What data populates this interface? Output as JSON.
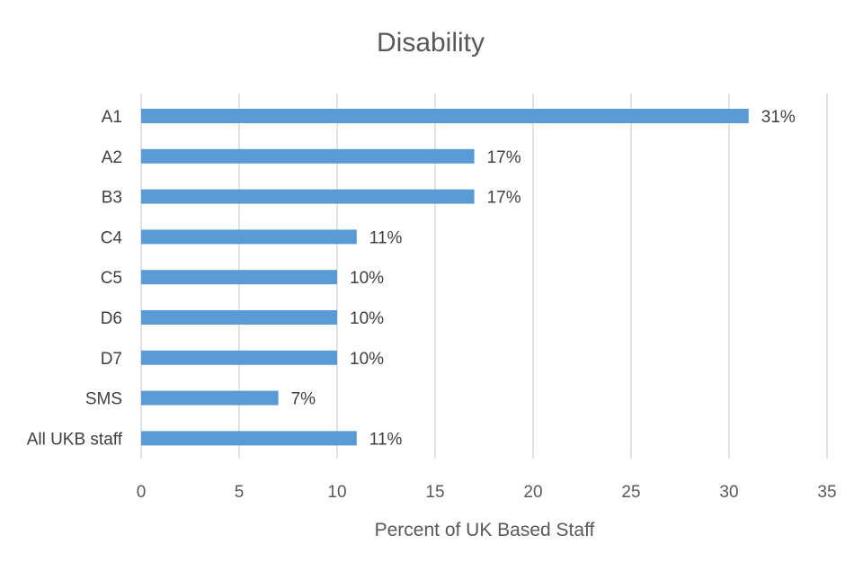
{
  "chart_data": {
    "type": "bar",
    "orientation": "horizontal",
    "title": "Disability",
    "xlabel": "Percent of UK Based Staff",
    "ylabel": "",
    "xlim": [
      0,
      35
    ],
    "xticks": [
      0,
      5,
      10,
      15,
      20,
      25,
      30,
      35
    ],
    "grid": true,
    "categories": [
      "A1",
      "A2",
      "B3",
      "C4",
      "C5",
      "D6",
      "D7",
      "SMS",
      "All UKB staff"
    ],
    "values": [
      31,
      17,
      17,
      11,
      10,
      10,
      10,
      7,
      11
    ],
    "data_labels": [
      "31%",
      "17%",
      "17%",
      "11%",
      "10%",
      "10%",
      "10%",
      "7%",
      "11%"
    ],
    "bar_color": "#5B9BD5"
  }
}
